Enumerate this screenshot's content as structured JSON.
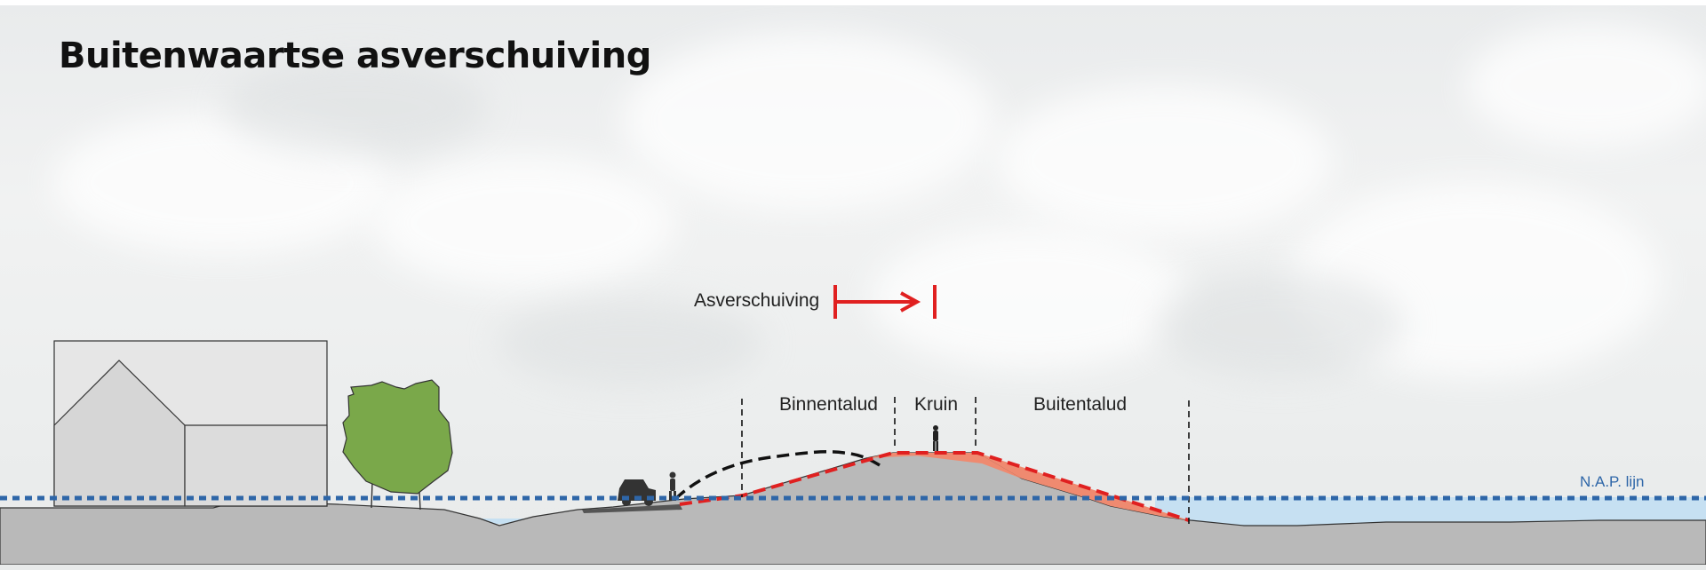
{
  "title": "Buitenwaartse asverschuiving",
  "labels": {
    "asverschuiving": "Asverschuiving",
    "binnentalud": "Binnentalud",
    "kruin": "Kruin",
    "buitentalud": "Buitentalud",
    "nap_lijn": "N.A.P. lijn"
  },
  "colors": {
    "new_dike_outline": "#e02020",
    "new_dike_fill": "#ef8a70",
    "ground": "#b8b8b8",
    "water": "#c6e0f2",
    "nap_line": "#2e66a8",
    "tree": "#7aa84a"
  }
}
